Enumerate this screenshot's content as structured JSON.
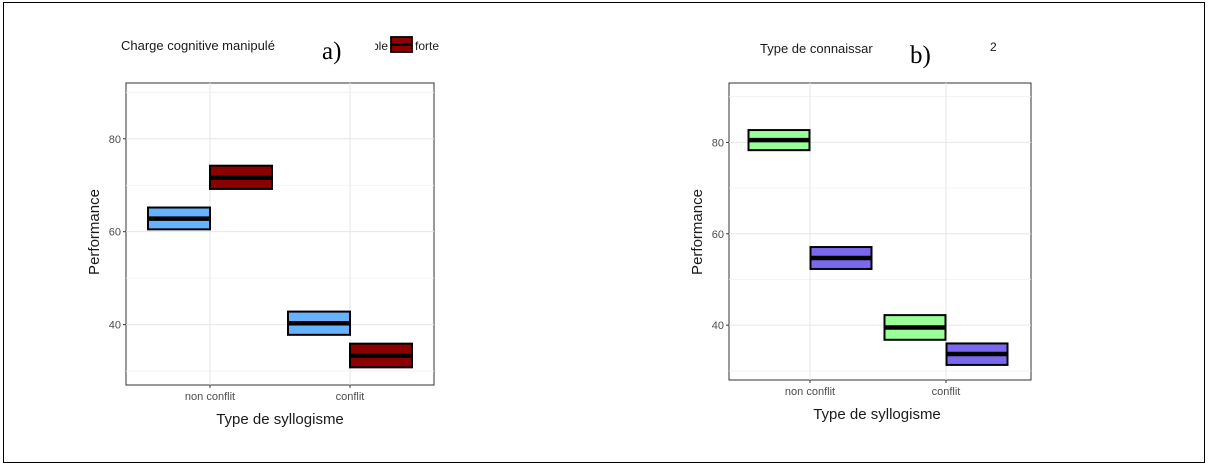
{
  "chart_data": [
    {
      "type": "box",
      "panel_label": "a)",
      "legend_title": "Charge cognitive manipulé",
      "legend_entries": [
        {
          "name": "ble",
          "color": "#66B2FF"
        },
        {
          "name": "forte",
          "color": "#8B0000"
        }
      ],
      "xlabel": "Type de syllogisme",
      "ylabel": "Performance",
      "categories": [
        "non conflit",
        "conflit"
      ],
      "ylim": [
        27,
        92
      ],
      "yticks": [
        40,
        60,
        80
      ],
      "grid": true,
      "series": [
        {
          "name": "ble",
          "color": "#66B2FF",
          "boxes": [
            {
              "category": "non conflit",
              "low": 60.5,
              "median": 62.8,
              "high": 65.2
            },
            {
              "category": "conflit",
              "low": 37.8,
              "median": 40.3,
              "high": 42.8
            }
          ]
        },
        {
          "name": "forte",
          "color": "#8B0000",
          "boxes": [
            {
              "category": "non conflit",
              "low": 69.2,
              "median": 71.6,
              "high": 74.2
            },
            {
              "category": "conflit",
              "low": 30.8,
              "median": 33.3,
              "high": 35.9
            }
          ]
        }
      ]
    },
    {
      "type": "box",
      "panel_label": "b)",
      "legend_title": "Type de connaissar",
      "legend_entries": [
        {
          "name": "2",
          "color": null
        }
      ],
      "xlabel": "Type de syllogisme",
      "ylabel": "Performance",
      "categories": [
        "non conflit",
        "conflit"
      ],
      "ylim": [
        28,
        93
      ],
      "yticks": [
        40,
        60,
        80
      ],
      "grid": true,
      "series": [
        {
          "name": "",
          "color": "#99FF99",
          "boxes": [
            {
              "category": "non conflit",
              "low": 78.3,
              "median": 80.5,
              "high": 82.7
            },
            {
              "category": "conflit",
              "low": 36.8,
              "median": 39.5,
              "high": 42.2
            }
          ]
        },
        {
          "name": "2",
          "color": "#7B68EE",
          "boxes": [
            {
              "category": "non conflit",
              "low": 52.3,
              "median": 54.7,
              "high": 57.1
            },
            {
              "category": "conflit",
              "low": 31.3,
              "median": 33.7,
              "high": 36.0
            }
          ]
        }
      ]
    }
  ]
}
